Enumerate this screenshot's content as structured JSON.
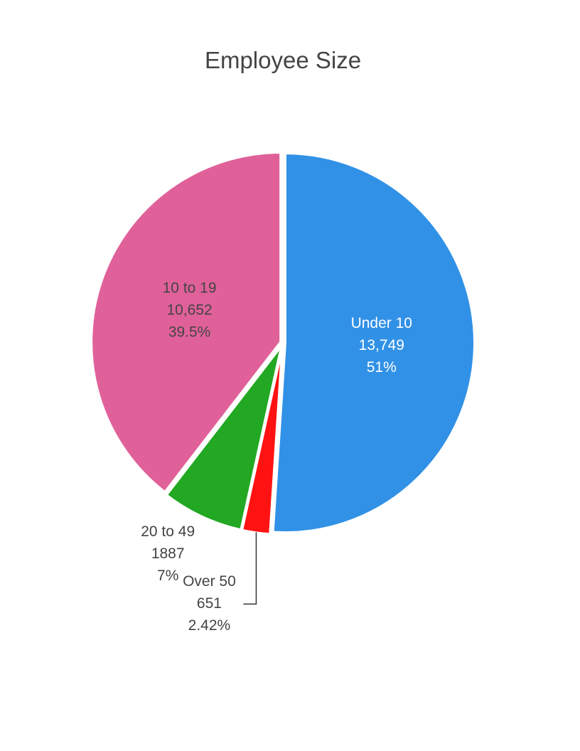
{
  "chart_data": {
    "type": "pie",
    "title": "Employee Size",
    "slices": [
      {
        "name": "Under 10",
        "value_label": "13,749",
        "percent_label": "51%",
        "value": 13749,
        "percent": 51,
        "color": "#3191e6",
        "label_color": "#ffffff",
        "label_position": "inside"
      },
      {
        "name": "Over 50",
        "value_label": "651",
        "percent_label": "2.42%",
        "value": 651,
        "percent": 2.42,
        "color": "#ff1212",
        "label_color": "#444444",
        "label_position": "outside-leader"
      },
      {
        "name": "20 to 49",
        "value_label": "1887",
        "percent_label": "7%",
        "value": 1887,
        "percent": 7,
        "color": "#22a822",
        "label_color": "#444444",
        "label_position": "outside"
      },
      {
        "name": "10 to 19",
        "value_label": "10,652",
        "percent_label": "39.5%",
        "value": 10652,
        "percent": 39.5,
        "color": "#e0619a",
        "label_color": "#444444",
        "label_position": "inside"
      }
    ],
    "start_angle_deg": 0,
    "direction": "clockwise"
  }
}
